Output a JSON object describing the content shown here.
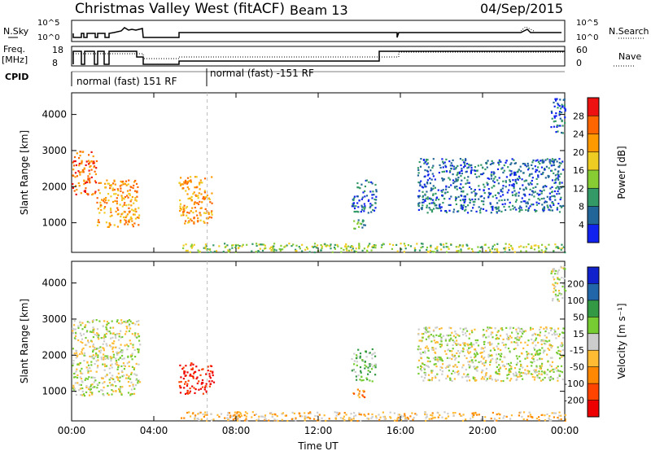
{
  "header": {
    "station": "Christmas Valley West (fitACF)",
    "beam": "Beam 13",
    "date": "04/Sep/2015"
  },
  "panels": {
    "nsky_label": "N.Sky",
    "nsky_ticks": [
      "10^5",
      "10^0"
    ],
    "nsearch_label": "N.Search",
    "freq_label": "Freq.",
    "freq_unit": "[MHz]",
    "freq_ticks": [
      "18",
      "8"
    ],
    "nave_label": "Nave",
    "nave_ticks": [
      "60",
      "0"
    ],
    "cpid_label": "CPID",
    "cpid_segments": [
      "normal (fast) 151 RF",
      "normal (fast) -151 RF"
    ]
  },
  "colorbars": {
    "power": {
      "label": "Power [dB]",
      "ticks": [
        "28",
        "24",
        "20",
        "16",
        "12",
        "8",
        "4"
      ],
      "colors": [
        "#ee1111",
        "#ff6600",
        "#ff9900",
        "#eecc22",
        "#88cc33",
        "#339966",
        "#226699",
        "#1122ee"
      ]
    },
    "velocity": {
      "label": "Velocity [m s⁻¹]",
      "ticks": [
        "200",
        "100",
        "50",
        "15",
        "-15",
        "-50",
        "-100",
        "-200"
      ],
      "colors": [
        "#1122cc",
        "#2266aa",
        "#339944",
        "#77cc33",
        "#cccccc",
        "#ffbb33",
        "#ff8800",
        "#ff4400",
        "#ee0000"
      ]
    }
  },
  "chart_data": [
    {
      "type": "heatmap",
      "title": "",
      "xlabel": "Time UT",
      "ylabel": "Slant Range [km]",
      "x_ticks": [
        "00:00",
        "04:00",
        "08:00",
        "12:00",
        "16:00",
        "20:00",
        "00:00"
      ],
      "y_ticks": [
        "1000",
        "2000",
        "3000",
        "4000"
      ],
      "xlim_hours": [
        0,
        24
      ],
      "ylim_km": [
        180,
        4600
      ],
      "colorbar": "power",
      "regions": [
        {
          "t0": 0.0,
          "t1": 1.2,
          "r0": 1800,
          "r1": 3000,
          "level": 1
        },
        {
          "t0": 1.2,
          "t1": 3.3,
          "r0": 900,
          "r1": 2200,
          "level": 2
        },
        {
          "t0": 5.2,
          "t1": 6.8,
          "r0": 1000,
          "r1": 2300,
          "level": 2
        },
        {
          "t0": 13.5,
          "t1": 14.3,
          "r0": 850,
          "r1": 1100,
          "level": 5
        },
        {
          "t0": 13.6,
          "t1": 14.8,
          "r0": 1300,
          "r1": 2200,
          "level": 6
        },
        {
          "t0": 16.8,
          "t1": 23.9,
          "r0": 1300,
          "r1": 2800,
          "level": 6
        },
        {
          "t0": 5.2,
          "t1": 24.0,
          "r0": 200,
          "r1": 450,
          "level": 4
        },
        {
          "t0": 23.3,
          "t1": 24.0,
          "r0": 3500,
          "r1": 4500,
          "level": 6
        }
      ]
    },
    {
      "type": "heatmap",
      "title": "",
      "xlabel": "Time UT",
      "ylabel": "Slant Range [km]",
      "x_ticks": [
        "00:00",
        "04:00",
        "08:00",
        "12:00",
        "16:00",
        "20:00",
        "00:00"
      ],
      "y_ticks": [
        "1000",
        "2000",
        "3000",
        "4000"
      ],
      "xlim_hours": [
        0,
        24
      ],
      "ylim_km": [
        180,
        4600
      ],
      "colorbar": "velocity",
      "regions": [
        {
          "t0": 0.0,
          "t1": 3.3,
          "r0": 900,
          "r1": 3000,
          "level": 4
        },
        {
          "t0": 5.2,
          "t1": 6.9,
          "r0": 950,
          "r1": 1800,
          "level": 8
        },
        {
          "t0": 13.5,
          "t1": 14.3,
          "r0": 850,
          "r1": 1100,
          "level": 6
        },
        {
          "t0": 13.6,
          "t1": 14.8,
          "r0": 1300,
          "r1": 2200,
          "level": 3
        },
        {
          "t0": 16.8,
          "t1": 23.9,
          "r0": 1300,
          "r1": 2800,
          "level": 4
        },
        {
          "t0": 5.2,
          "t1": 24.0,
          "r0": 200,
          "r1": 450,
          "level": 5
        },
        {
          "t0": 23.3,
          "t1": 24.0,
          "r0": 3500,
          "r1": 4500,
          "level": 4
        }
      ]
    }
  ]
}
